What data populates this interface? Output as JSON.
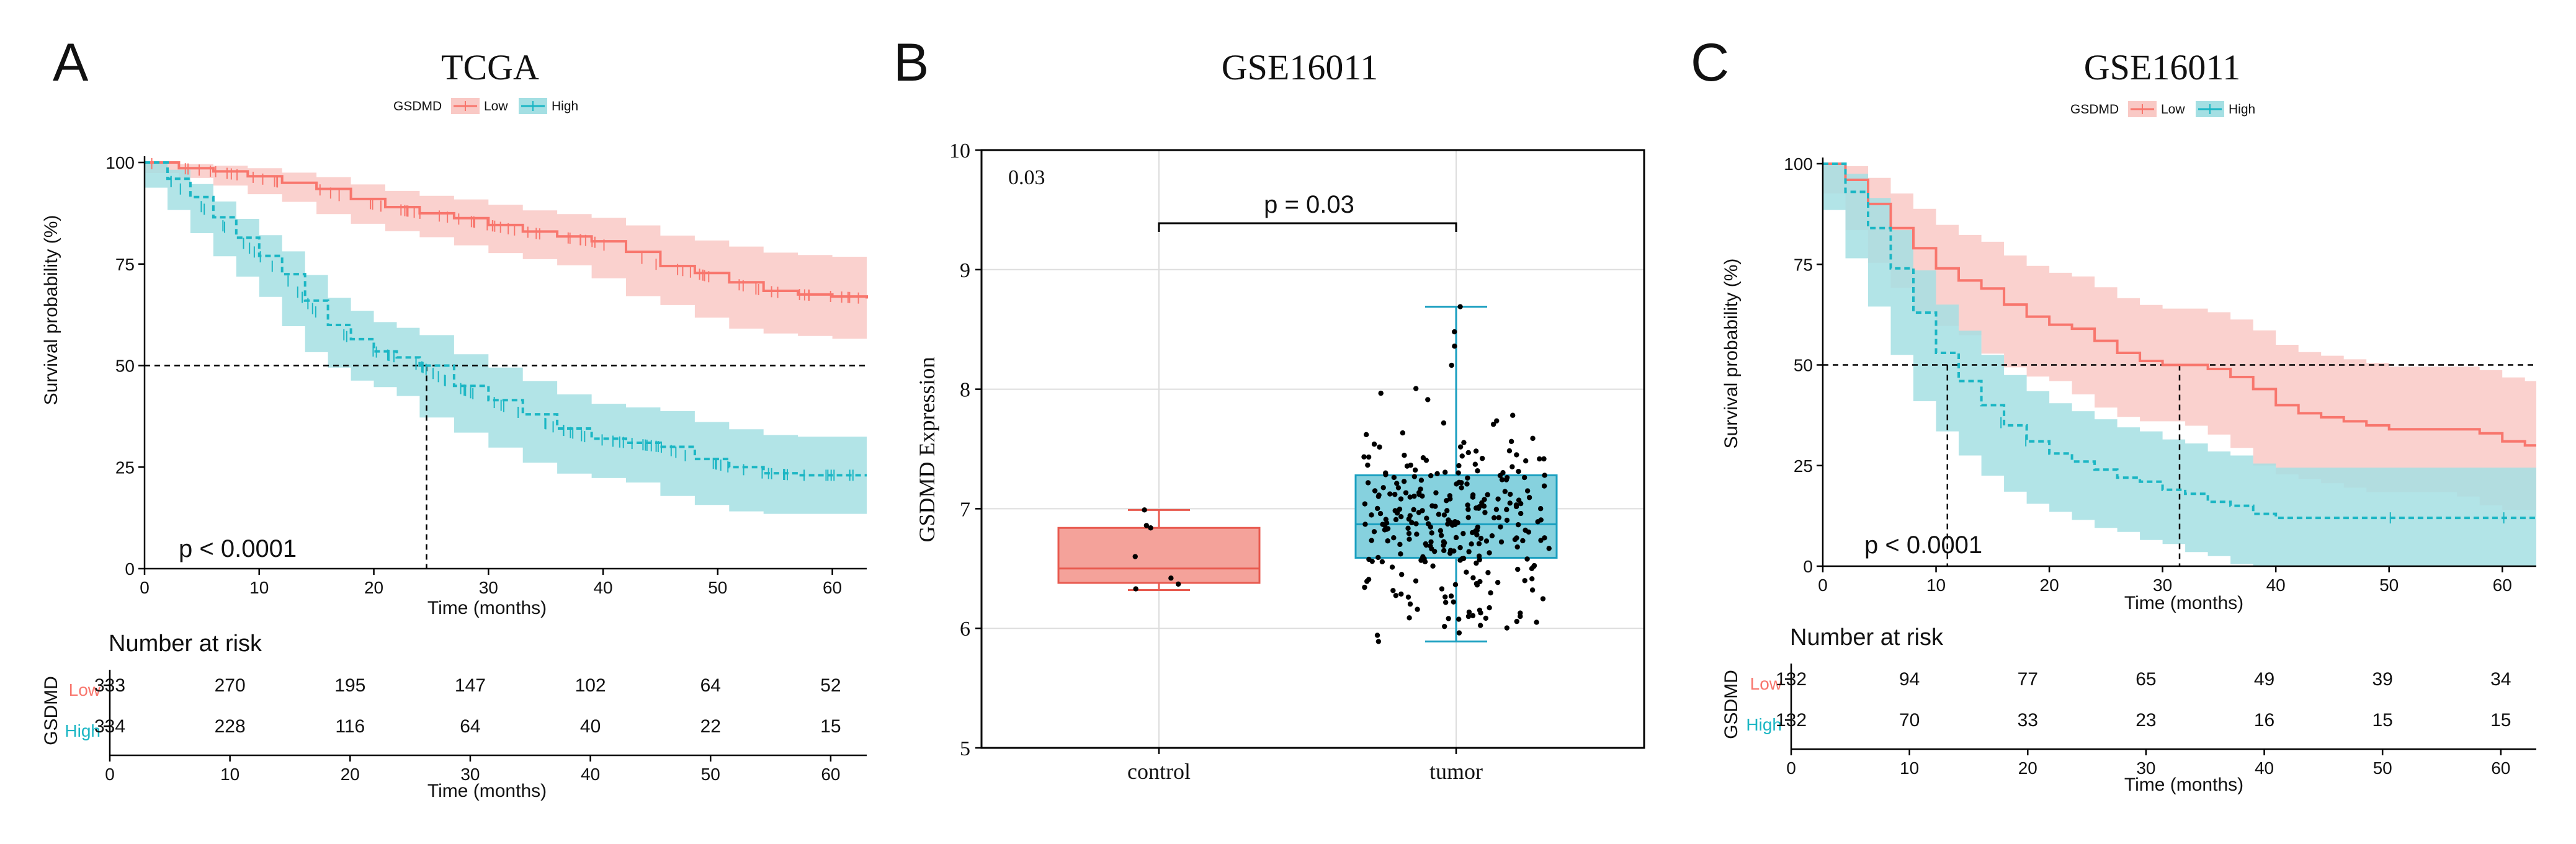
{
  "colors": {
    "low": "#f8766d",
    "low_band": "#f9c9c5",
    "high": "#1bb6c4",
    "high_band": "#a4dfe3",
    "control_fill": "#f4a29a",
    "control_stroke": "#e85a4f",
    "tumor_fill": "#86d1de",
    "tumor_stroke": "#1a9fc0",
    "axis": "#000000",
    "grid": "#dddddd"
  },
  "panels": {
    "A": {
      "letter": "A"
    },
    "B": {
      "letter": "B"
    },
    "C": {
      "letter": "C"
    }
  },
  "chart_data": [
    {
      "id": "A",
      "type": "line",
      "subtype": "kaplan-meier",
      "title": "TCGA",
      "legend": {
        "title": "GSDMD",
        "labels": [
          "Low",
          "High"
        ],
        "placement": "top-center"
      },
      "xlabel": "Time (months)",
      "ylabel": "Survival probability (%)",
      "xlim": [
        0,
        63
      ],
      "ylim": [
        0,
        100
      ],
      "xticks": [
        0,
        10,
        20,
        30,
        40,
        50,
        60
      ],
      "yticks": [
        0,
        25,
        50,
        75,
        100
      ],
      "median_line_y": 50,
      "median_x": 24.6,
      "pvalue_text": "p < 0.0001",
      "series": [
        {
          "name": "Low",
          "points": [
            [
              0,
              100
            ],
            [
              3,
              98.6
            ],
            [
              6,
              97.8
            ],
            [
              9,
              96.6
            ],
            [
              12,
              95
            ],
            [
              15,
              93.5
            ],
            [
              18,
              91
            ],
            [
              21,
              89
            ],
            [
              24,
              87.5
            ],
            [
              27,
              86.3
            ],
            [
              30,
              84.6
            ],
            [
              33,
              83
            ],
            [
              36,
              81.8
            ],
            [
              39,
              80.6
            ],
            [
              42,
              78
            ],
            [
              45,
              74.5
            ],
            [
              48,
              72.8
            ],
            [
              51,
              70.5
            ],
            [
              54,
              68.4
            ],
            [
              57,
              67.5
            ],
            [
              60,
              67
            ],
            [
              63,
              66.5
            ]
          ],
          "band_upper": [
            100,
            99.6,
            99.2,
            98.6,
            97.5,
            96.4,
            94.6,
            93,
            91.8,
            90.9,
            89.6,
            88.2,
            87.3,
            86.4,
            84.5,
            82,
            80.8,
            79.3,
            77.8,
            77.2,
            76.8,
            76.5
          ],
          "band_lower": [
            100,
            97.4,
            96.2,
            94.3,
            92.2,
            90.3,
            87.3,
            84.9,
            83.1,
            81.6,
            79.6,
            77.7,
            76.2,
            74.7,
            71.5,
            67.1,
            64.9,
            61.8,
            59.1,
            57.9,
            57.3,
            56.6
          ]
        },
        {
          "name": "High",
          "points": [
            [
              0,
              100
            ],
            [
              2,
              96
            ],
            [
              4,
              91.5
            ],
            [
              6,
              86.5
            ],
            [
              8,
              81.5
            ],
            [
              10,
              77
            ],
            [
              12,
              72.5
            ],
            [
              14,
              66
            ],
            [
              16,
              60
            ],
            [
              18,
              56.5
            ],
            [
              20,
              53.5
            ],
            [
              22,
              52
            ],
            [
              24,
              50
            ],
            [
              27,
              45
            ],
            [
              30,
              41.5
            ],
            [
              33,
              38
            ],
            [
              36,
              34.5
            ],
            [
              39,
              32
            ],
            [
              42,
              31
            ],
            [
              45,
              30
            ],
            [
              48,
              27
            ],
            [
              51,
              25
            ],
            [
              54,
              23.5
            ],
            [
              57,
              23
            ],
            [
              60,
              23
            ],
            [
              63,
              23
            ]
          ],
          "band_upper": [
            100,
            98.2,
            94.7,
            90.4,
            86.1,
            82.1,
            78.1,
            72.3,
            66.7,
            63.5,
            60.7,
            59.3,
            57.5,
            52.8,
            49.5,
            46.2,
            42.9,
            40.6,
            39.7,
            38.8,
            36.1,
            34.3,
            32.9,
            32.5,
            32.5,
            32.5
          ],
          "band_lower": [
            100,
            93.8,
            88.3,
            82.6,
            76.9,
            71.9,
            66.9,
            59.7,
            53.3,
            49.5,
            46.3,
            44.7,
            42.5,
            37.2,
            33.5,
            29.8,
            26.1,
            23.4,
            22.3,
            21.2,
            17.9,
            15.7,
            14.1,
            13.5,
            13.5,
            13.5
          ]
        }
      ],
      "risk_table": {
        "title": "Number at risk",
        "group_label": "GSDMD",
        "xlabel": "Time (months)",
        "times": [
          0,
          10,
          20,
          30,
          40,
          50,
          60
        ],
        "rows": [
          {
            "label": "Low",
            "values": [
              "333",
              "270",
              "195",
              "147",
              "102",
              "64",
              "52"
            ]
          },
          {
            "label": "High",
            "values": [
              "334",
              "228",
              "116",
              "64",
              "40",
              "22",
              "15"
            ]
          }
        ]
      }
    },
    {
      "id": "B",
      "type": "box",
      "title": "GSE16011",
      "ylabel": "GSDMD Expression",
      "ylim": [
        5,
        10
      ],
      "yticks": [
        5,
        6,
        7,
        8,
        9,
        10
      ],
      "categories": [
        "control",
        "tumor"
      ],
      "corner_label": "0.03",
      "pvalue_text": "p = 0.03",
      "boxes": [
        {
          "name": "control",
          "q1": 6.38,
          "median": 6.5,
          "q3": 6.84,
          "whisker_low": 6.32,
          "whisker_high": 6.99
        },
        {
          "name": "tumor",
          "q1": 6.59,
          "median": 6.87,
          "q3": 7.28,
          "whisker_low": 5.89,
          "whisker_high": 8.69
        }
      ],
      "points": {
        "control": [
          6.99,
          6.86,
          6.84,
          6.6,
          6.42,
          6.37,
          6.33
        ],
        "tumor_count": 280,
        "tumor_range": [
          5.89,
          8.69
        ],
        "tumor_outliers": [
          8.69,
          8.48,
          8.36,
          8.2
        ]
      }
    },
    {
      "id": "C",
      "type": "line",
      "subtype": "kaplan-meier",
      "title": "GSE16011",
      "legend": {
        "title": "GSDMD",
        "labels": [
          "Low",
          "High"
        ],
        "placement": "top-center"
      },
      "xlabel": "Time (months)",
      "ylabel": "Survival probability (%)",
      "xlim": [
        0,
        63
      ],
      "ylim": [
        0,
        100
      ],
      "xticks": [
        0,
        10,
        20,
        30,
        40,
        50,
        60
      ],
      "yticks": [
        0,
        25,
        50,
        75,
        100
      ],
      "median_line_y": 50,
      "median_x_high": 11,
      "median_x_low": 31.5,
      "pvalue_text": "p < 0.0001",
      "series": [
        {
          "name": "Low",
          "points": [
            [
              0,
              100
            ],
            [
              2,
              96
            ],
            [
              4,
              90
            ],
            [
              6,
              84
            ],
            [
              8,
              79
            ],
            [
              10,
              74
            ],
            [
              12,
              71
            ],
            [
              14,
              69
            ],
            [
              16,
              65
            ],
            [
              18,
              62
            ],
            [
              20,
              60
            ],
            [
              22,
              59
            ],
            [
              24,
              56
            ],
            [
              26,
              53
            ],
            [
              28,
              51
            ],
            [
              30,
              50
            ],
            [
              32,
              50
            ],
            [
              34,
              49
            ],
            [
              36,
              47
            ],
            [
              38,
              44
            ],
            [
              40,
              40
            ],
            [
              42,
              38
            ],
            [
              44,
              37
            ],
            [
              46,
              36
            ],
            [
              48,
              35
            ],
            [
              50,
              34
            ],
            [
              52,
              34
            ],
            [
              54,
              34
            ],
            [
              56,
              34
            ],
            [
              58,
              33
            ],
            [
              60,
              31
            ],
            [
              62,
              30
            ],
            [
              63,
              30
            ]
          ],
          "band_upper": [
            100,
            99.4,
            96.5,
            92.6,
            88.8,
            84.8,
            82.3,
            80.6,
            77.2,
            74.6,
            72.9,
            72,
            69.3,
            66.6,
            64.9,
            64,
            64,
            63.1,
            61.3,
            58.6,
            55,
            53.2,
            52.3,
            51.4,
            50.5,
            49.6,
            49.6,
            49.6,
            49.6,
            48.7,
            46.9,
            46,
            46
          ],
          "band_lower": [
            100,
            92.6,
            83.5,
            75.4,
            69.2,
            63.2,
            59.7,
            57.4,
            52.8,
            49.4,
            47.1,
            46,
            42.7,
            39.4,
            37.1,
            36,
            36,
            34.9,
            32.7,
            29.4,
            25,
            22.8,
            21.7,
            20.6,
            19.5,
            18.4,
            18.4,
            18.4,
            18.4,
            17.3,
            15.1,
            14,
            14
          ]
        },
        {
          "name": "High",
          "points": [
            [
              0,
              100
            ],
            [
              2,
              93
            ],
            [
              4,
              84
            ],
            [
              6,
              74
            ],
            [
              8,
              63
            ],
            [
              10,
              53
            ],
            [
              12,
              46
            ],
            [
              14,
              40
            ],
            [
              16,
              35
            ],
            [
              18,
              31
            ],
            [
              20,
              28
            ],
            [
              22,
              26
            ],
            [
              24,
              24
            ],
            [
              26,
              22
            ],
            [
              28,
              21
            ],
            [
              30,
              19
            ],
            [
              32,
              18
            ],
            [
              34,
              16
            ],
            [
              36,
              15
            ],
            [
              38,
              13
            ],
            [
              40,
              12
            ],
            [
              44,
              12
            ],
            [
              50,
              12
            ],
            [
              56,
              12
            ],
            [
              63,
              12
            ]
          ],
          "band_upper": [
            100,
            97.5,
            91.5,
            83.5,
            73.5,
            65,
            58.5,
            52.5,
            47.5,
            43.5,
            40.5,
            38.5,
            36.5,
            34.5,
            33.5,
            31.5,
            30.5,
            28.5,
            27.5,
            25.5,
            24.5,
            24.5,
            24.5,
            24.5,
            24.5
          ],
          "band_lower": [
            100,
            88.5,
            76.5,
            64.5,
            52.5,
            41,
            33.5,
            27.5,
            22.5,
            18.5,
            15.5,
            13.5,
            11.5,
            9.5,
            8.5,
            6.5,
            5.5,
            3.5,
            2.5,
            0.5,
            0,
            0,
            0,
            0,
            0
          ]
        }
      ],
      "risk_table": {
        "title": "Number at risk",
        "group_label": "GSDMD",
        "xlabel": "Time (months)",
        "times": [
          0,
          10,
          20,
          30,
          40,
          50,
          60
        ],
        "rows": [
          {
            "label": "Low",
            "values": [
              "132",
              "94",
              "77",
              "65",
              "49",
              "39",
              "34"
            ]
          },
          {
            "label": "High",
            "values": [
              "132",
              "70",
              "33",
              "23",
              "16",
              "15",
              "15"
            ]
          }
        ]
      }
    }
  ]
}
